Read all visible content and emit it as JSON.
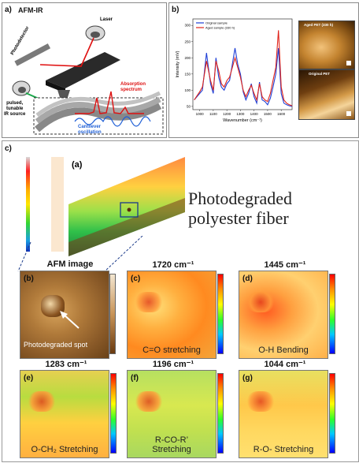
{
  "panel_a": {
    "label": "a)",
    "title": "AFM-IR",
    "laser": "Laser",
    "photodetector": "Photodetector",
    "ir_source": "pulsed,\ntunable\nIR source",
    "absorption": "Absorption\nspectrum",
    "cantilever": "Cantilever\noscillation"
  },
  "panel_b": {
    "label": "b)",
    "legend_original": "Original sample",
    "legend_aged": "Aged sample (330 h)",
    "ylabel": "Intensity (mV)",
    "xlabel": "Wavenumber (cm⁻¹)",
    "x_ticks": [
      "1000",
      "1100",
      "1200",
      "1300",
      "1400",
      "1500",
      "1600"
    ],
    "y_ticks": [
      "50",
      "100",
      "150",
      "200",
      "250",
      "300"
    ],
    "inset_top": "Aged PET (330 h)",
    "inset_bottom": "Original PET"
  },
  "panel_c": {
    "label": "c)",
    "sub_a": "(a)",
    "title": "Photodegraded\npolyester fiber",
    "afm_title": "AFM image",
    "sub_b": "(b)",
    "photo_spot": "Photodegraded spot",
    "maps": [
      {
        "letter": "(c)",
        "wavenumber": "1720 cm⁻¹",
        "caption": "C=O stretching"
      },
      {
        "letter": "(d)",
        "wavenumber": "1445 cm⁻¹",
        "caption": "O-H Bending"
      },
      {
        "letter": "(e)",
        "wavenumber": "1283 cm⁻¹",
        "caption": "O-CH₂ Stretching"
      },
      {
        "letter": "(f)",
        "wavenumber": "1196 cm⁻¹",
        "caption": "R-CO-R’\nStretching"
      },
      {
        "letter": "(g)",
        "wavenumber": "1044 cm⁻¹",
        "caption": "R-O- Stretching"
      }
    ]
  },
  "chart_data": {
    "type": "line",
    "title": "",
    "xlabel": "Wavenumber (cm⁻¹)",
    "ylabel": "Intensity (mV)",
    "xlim": [
      950,
      1680
    ],
    "ylim": [
      40,
      320
    ],
    "series": [
      {
        "name": "Original sample",
        "color": "#1f3fd6",
        "x": [
          960,
          1000,
          1020,
          1050,
          1080,
          1100,
          1120,
          1140,
          1160,
          1180,
          1200,
          1220,
          1240,
          1260,
          1280,
          1300,
          1320,
          1340,
          1360,
          1380,
          1400,
          1420,
          1440,
          1460,
          1480,
          1500,
          1520,
          1540,
          1560,
          1580,
          1600,
          1620,
          1640,
          1660,
          1680
        ],
        "y": [
          70,
          90,
          100,
          215,
          120,
          90,
          200,
          140,
          110,
          100,
          120,
          130,
          180,
          230,
          180,
          150,
          95,
          70,
          90,
          120,
          80,
          60,
          125,
          70,
          65,
          55,
          75,
          110,
          150,
          230,
          90,
          60,
          55,
          52,
          50
        ]
      },
      {
        "name": "Aged sample (330 h)",
        "color": "#e0241b",
        "x": [
          960,
          1000,
          1020,
          1050,
          1080,
          1100,
          1120,
          1140,
          1160,
          1180,
          1200,
          1220,
          1240,
          1260,
          1280,
          1300,
          1320,
          1340,
          1360,
          1380,
          1400,
          1420,
          1440,
          1460,
          1480,
          1500,
          1520,
          1540,
          1560,
          1580,
          1600,
          1620,
          1640,
          1660,
          1680
        ],
        "y": [
          70,
          95,
          110,
          190,
          130,
          100,
          190,
          160,
          120,
          110,
          130,
          140,
          170,
          200,
          170,
          140,
          100,
          80,
          100,
          115,
          90,
          70,
          120,
          80,
          70,
          65,
          90,
          130,
          170,
          285,
          110,
          70,
          60,
          55,
          52
        ]
      }
    ]
  }
}
